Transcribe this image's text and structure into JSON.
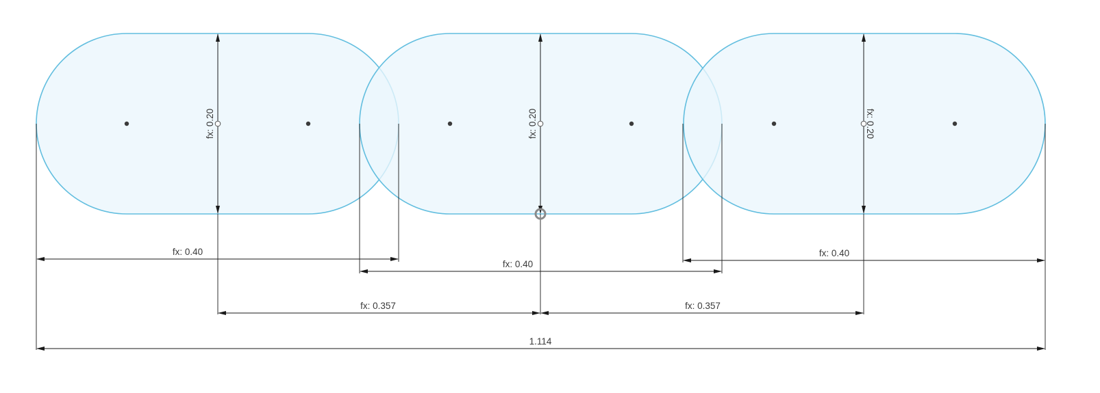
{
  "sketch": {
    "slots": [
      {
        "id": "slot-1",
        "height_dim": "fx: 0.20"
      },
      {
        "id": "slot-2",
        "height_dim": "fx: 0.20"
      },
      {
        "id": "slot-3",
        "height_dim": "fx: 0.20"
      }
    ],
    "dimensions": {
      "slot1_width": "fx: 0.40",
      "slot2_width": "fx: 0.40",
      "slot3_width": "fx: 0.40",
      "spacing_left": "fx: 0.357",
      "spacing_right": "fx: 0.357",
      "overall_width": "1.114"
    },
    "colors": {
      "slot_stroke": "#62bedf",
      "slot_fill": "#eaf6fc",
      "dimension_line": "#1a1a1a"
    }
  }
}
